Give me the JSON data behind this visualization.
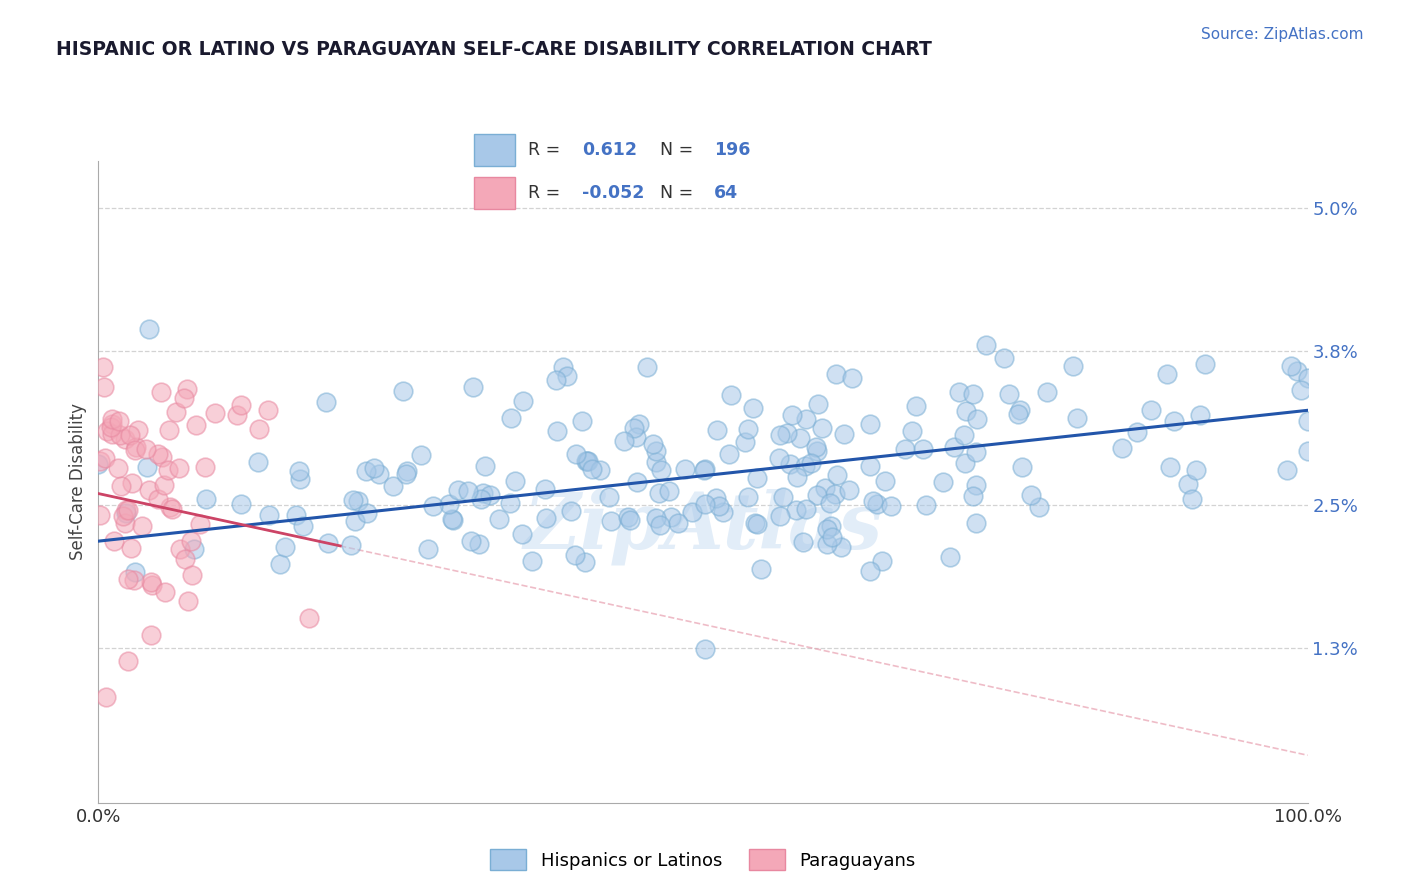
{
  "title": "HISPANIC OR LATINO VS PARAGUAYAN SELF-CARE DISABILITY CORRELATION CHART",
  "source_text": "Source: ZipAtlas.com",
  "ylabel": "Self-Care Disability",
  "xlim": [
    0,
    100
  ],
  "ylim_bottom": 0.0,
  "ylim_top": 5.4,
  "yticks": [
    1.3,
    2.5,
    3.8,
    5.0
  ],
  "ytick_labels": [
    "1.3%",
    "2.5%",
    "3.8%",
    "5.0%"
  ],
  "xtick_labels": [
    "0.0%",
    "100.0%"
  ],
  "blue_color": "#a8c8e8",
  "blue_edge_color": "#7aaed4",
  "pink_color": "#f4a8b8",
  "pink_edge_color": "#e888a0",
  "blue_line_color": "#2255aa",
  "pink_line_color": "#cc4466",
  "pink_dash_color": "#e8a0b0",
  "background_color": "#ffffff",
  "grid_color": "#cccccc",
  "title_color": "#1a1a2e",
  "source_color": "#4472c4",
  "axis_color": "#aaaaaa",
  "watermark_text": "ZipAtlas",
  "R_blue_str": "0.612",
  "N_blue_str": "196",
  "R_pink_str": "-0.052",
  "N_pink_str": "64",
  "N_blue": 196,
  "N_pink": 64,
  "blue_seed": 42,
  "pink_seed": 99,
  "blue_x_mean": 52,
  "blue_x_std": 25,
  "blue_y_at_0": 2.2,
  "blue_slope": 0.011,
  "blue_noise": 0.45,
  "pink_x_max": 18,
  "pink_y_mean": 2.0,
  "pink_y_std": 0.85,
  "pink_y_at_0": 2.6,
  "pink_slope": -0.022,
  "pink_noise": 0.65,
  "legend_label_blue": "Hispanics or Latinos",
  "legend_label_pink": "Paraguayans",
  "scatter_size": 180,
  "scatter_alpha": 0.55
}
